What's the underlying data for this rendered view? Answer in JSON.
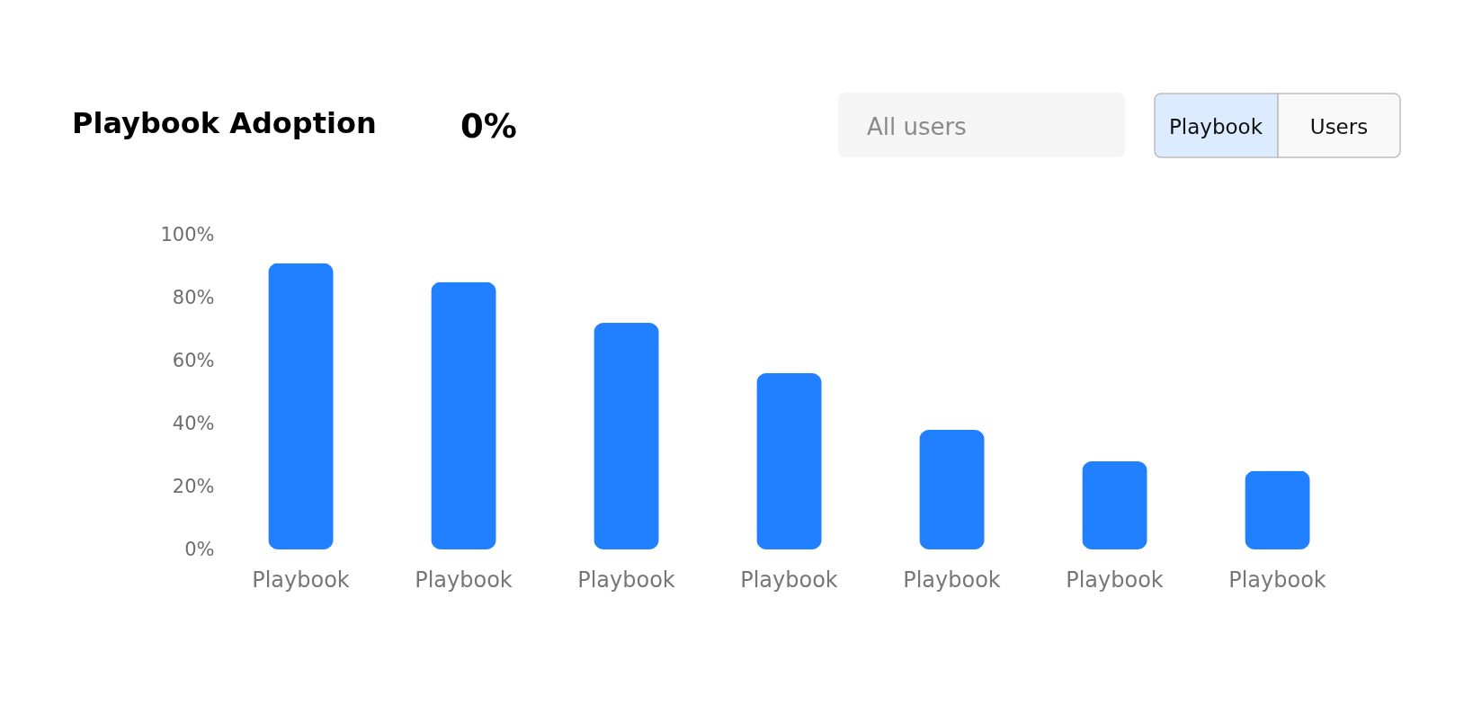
{
  "chart_data": {
    "type": "bar",
    "title": "Playbook Adoption",
    "annotations": [
      "0%",
      "All users",
      "Playbook",
      "Users"
    ],
    "categories": [
      "Playbook",
      "Playbook",
      "Playbook",
      "Playbook",
      "Playbook",
      "Playbook",
      "Playbook"
    ],
    "values": [
      91,
      85,
      72,
      56,
      38,
      28,
      25
    ],
    "color": "#2080ff",
    "ylim": [
      0,
      100
    ],
    "yticks": [
      {
        "value": 0,
        "label": "0%"
      },
      {
        "value": 20,
        "label": "20%"
      },
      {
        "value": 40,
        "label": "40%"
      },
      {
        "value": 60,
        "label": "60%"
      },
      {
        "value": 80,
        "label": "80%"
      },
      {
        "value": 100,
        "label": "100%"
      }
    ],
    "grid": false
  }
}
